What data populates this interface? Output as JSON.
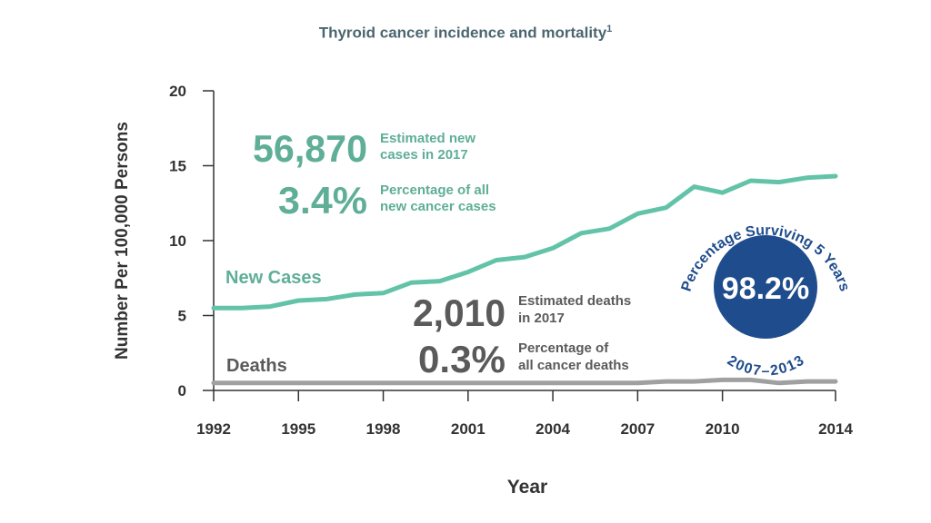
{
  "title": "Thyroid cancer incidence and mortality",
  "title_superscript": "1",
  "colors": {
    "new_cases": "#62c3a8",
    "deaths": "#a0a0a0",
    "stat_teal": "#5fae97",
    "stat_gray": "#5a5a5a",
    "circle": "#1f4c8c",
    "axis": "#333333"
  },
  "chart_data": {
    "type": "line",
    "xlabel": "Year",
    "ylabel": "Number Per 100,000 Persons",
    "xlim": [
      1992,
      2014
    ],
    "ylim": [
      0,
      20
    ],
    "x_ticks": [
      "1992",
      "1995",
      "1998",
      "2001",
      "2004",
      "2007",
      "2010",
      "2014"
    ],
    "y_ticks": [
      "0",
      "5",
      "10",
      "15",
      "20"
    ],
    "grid": false,
    "x": [
      1992,
      1993,
      1994,
      1995,
      1996,
      1997,
      1998,
      1999,
      2000,
      2001,
      2002,
      2003,
      2004,
      2005,
      2006,
      2007,
      2008,
      2009,
      2010,
      2011,
      2012,
      2013,
      2014
    ],
    "series": [
      {
        "name": "New Cases",
        "values": [
          5.5,
          5.5,
          5.6,
          6.0,
          6.1,
          6.4,
          6.5,
          7.2,
          7.3,
          7.9,
          8.7,
          8.9,
          9.5,
          10.5,
          10.8,
          11.8,
          12.2,
          13.6,
          13.2,
          14.0,
          13.9,
          14.2,
          14.3
        ]
      },
      {
        "name": "Deaths",
        "values": [
          0.5,
          0.5,
          0.5,
          0.5,
          0.5,
          0.5,
          0.5,
          0.5,
          0.5,
          0.5,
          0.5,
          0.5,
          0.5,
          0.5,
          0.5,
          0.5,
          0.6,
          0.6,
          0.7,
          0.7,
          0.5,
          0.6,
          0.6
        ]
      }
    ],
    "annotations": {
      "new_cases_count": "56,870",
      "new_cases_count_label_1": "Estimated new",
      "new_cases_count_label_2": "cases in 2017",
      "new_cases_pct": "3.4%",
      "new_cases_pct_label_1": "Percentage of all",
      "new_cases_pct_label_2": "new cancer cases",
      "deaths_count": "2,010",
      "deaths_count_label_1": "Estimated deaths",
      "deaths_count_label_2": "in 2017",
      "deaths_pct": "0.3%",
      "deaths_pct_label_1": "Percentage of",
      "deaths_pct_label_2": "all cancer deaths",
      "survival_value": "98.2%",
      "survival_label": "Percentage Surviving 5 Years",
      "survival_period": "2007–2013"
    }
  }
}
